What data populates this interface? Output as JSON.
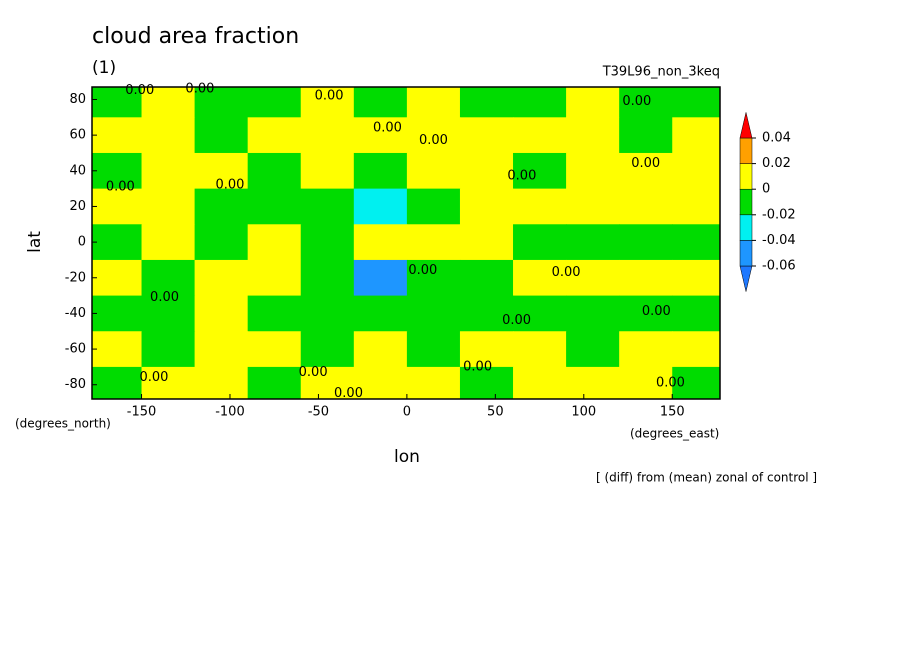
{
  "chart_data": {
    "type": "contour-map",
    "title": "cloud area fraction",
    "subtitle": "(1)",
    "run_label": "T39L96_non_3keq",
    "x_label": "lon",
    "y_label": "lat",
    "x_units": "(degrees_east)",
    "y_units": "(degrees_north)",
    "note": "[ (diff) from (mean) zonal of control ]",
    "xlim": [
      -178,
      177
    ],
    "ylim": [
      -88,
      87
    ],
    "xticks": [
      -150,
      -100,
      -50,
      0,
      50,
      100,
      150
    ],
    "yticks": [
      -80,
      -60,
      -40,
      -20,
      0,
      20,
      40,
      60,
      80
    ],
    "colorbar": {
      "levels": [
        -0.06,
        -0.04,
        -0.02,
        0,
        0.02,
        0.04
      ],
      "colors": [
        "#1e78ff",
        "#1e96ff",
        "#00f0f0",
        "#00dc00",
        "#ffff00",
        "#ffa000",
        "#ff0000"
      ]
    },
    "field": {
      "lon": [
        -165,
        -135,
        -105,
        -75,
        -45,
        -15,
        15,
        45,
        75,
        105,
        135,
        165
      ],
      "lat": [
        80,
        60,
        40,
        20,
        0,
        -20,
        -40,
        -60,
        -80
      ],
      "values": [
        [
          -0.01,
          0.01,
          -0.01,
          -0.01,
          0.01,
          -0.01,
          0.01,
          -0.01,
          -0.01,
          0.01,
          -0.01,
          -0.01
        ],
        [
          0.01,
          0.01,
          -0.01,
          0.01,
          0.01,
          0.01,
          0.01,
          0.01,
          0.01,
          0.01,
          -0.01,
          0.01
        ],
        [
          -0.01,
          0.01,
          0.01,
          -0.01,
          0.01,
          -0.01,
          0.01,
          0.01,
          -0.01,
          0.01,
          0.01,
          0.01
        ],
        [
          0.01,
          0.01,
          -0.01,
          -0.01,
          -0.01,
          -0.03,
          -0.01,
          0.01,
          0.01,
          0.01,
          0.01,
          0.01
        ],
        [
          -0.01,
          0.01,
          -0.01,
          0.01,
          -0.01,
          0.01,
          0.01,
          0.01,
          -0.01,
          -0.01,
          -0.01,
          -0.01
        ],
        [
          0.01,
          -0.01,
          0.01,
          0.01,
          -0.01,
          -0.05,
          -0.01,
          -0.01,
          0.01,
          0.01,
          0.01,
          0.01
        ],
        [
          -0.01,
          -0.01,
          0.01,
          -0.01,
          -0.01,
          -0.01,
          -0.01,
          -0.01,
          -0.01,
          -0.01,
          -0.01,
          -0.01
        ],
        [
          0.01,
          -0.01,
          0.01,
          0.01,
          -0.01,
          0.01,
          -0.01,
          0.01,
          0.01,
          -0.01,
          0.01,
          0.01
        ],
        [
          -0.01,
          0.01,
          0.01,
          -0.01,
          0.01,
          0.01,
          0.01,
          -0.01,
          0.01,
          0.01,
          0.01,
          -0.01
        ]
      ]
    },
    "contour_labels": [
      {
        "text": "0.00",
        "x": -151,
        "y": 85
      },
      {
        "text": "0.00",
        "x": -117,
        "y": 86
      },
      {
        "text": "0.00",
        "x": -44,
        "y": 82
      },
      {
        "text": "0.00",
        "x": -11,
        "y": 64
      },
      {
        "text": "0.00",
        "x": 15,
        "y": 57
      },
      {
        "text": "0.00",
        "x": 130,
        "y": 79
      },
      {
        "text": "0.00",
        "x": 135,
        "y": 44
      },
      {
        "text": "0.00",
        "x": 65,
        "y": 37
      },
      {
        "text": "0.00",
        "x": -100,
        "y": 32
      },
      {
        "text": "0.00",
        "x": -162,
        "y": 31
      },
      {
        "text": "0.00",
        "x": 9,
        "y": -16
      },
      {
        "text": "0.00",
        "x": 90,
        "y": -17
      },
      {
        "text": "0.00",
        "x": -137,
        "y": -31
      },
      {
        "text": "0.00",
        "x": 62,
        "y": -44
      },
      {
        "text": "0.00",
        "x": 141,
        "y": -39
      },
      {
        "text": "0.00",
        "x": 40,
        "y": -70
      },
      {
        "text": "0.00",
        "x": -143,
        "y": -76
      },
      {
        "text": "0.00",
        "x": -53,
        "y": -73
      },
      {
        "text": "0.00",
        "x": -33,
        "y": -85
      },
      {
        "text": "0.00",
        "x": 149,
        "y": -79
      }
    ]
  }
}
